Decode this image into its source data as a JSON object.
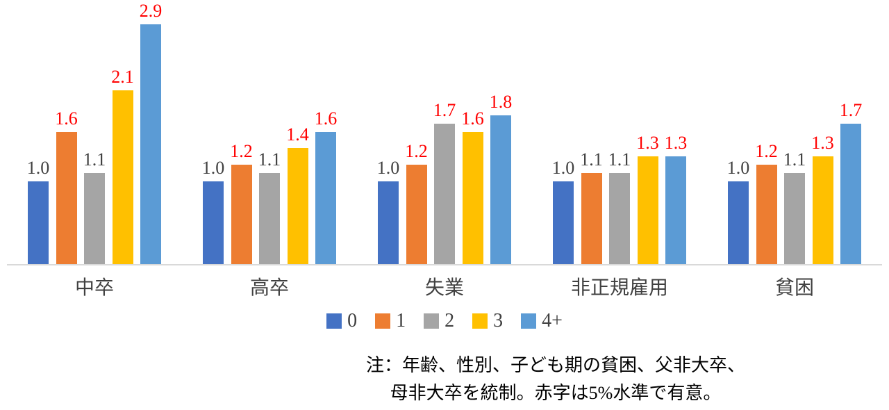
{
  "chart_data": {
    "type": "bar",
    "title": "",
    "xlabel": "",
    "ylabel": "",
    "ylim": [
      0,
      3.0
    ],
    "grid": false,
    "legend_position": "bottom-center",
    "categories": [
      "中卒",
      "高卒",
      "失業",
      "非正規雇用",
      "貧困"
    ],
    "series": [
      {
        "name": "0",
        "color": "#4472C4",
        "values": [
          1.0,
          1.0,
          1.0,
          1.0,
          1.0
        ],
        "significant": [
          false,
          false,
          false,
          false,
          false
        ]
      },
      {
        "name": "1",
        "color": "#ED7D31",
        "values": [
          1.6,
          1.2,
          1.2,
          1.1,
          1.2
        ],
        "significant": [
          true,
          true,
          true,
          false,
          true
        ]
      },
      {
        "name": "2",
        "color": "#A5A5A5",
        "values": [
          1.1,
          1.1,
          1.7,
          1.1,
          1.1
        ],
        "significant": [
          false,
          false,
          true,
          false,
          false
        ]
      },
      {
        "name": "3",
        "color": "#FFC000",
        "values": [
          2.1,
          1.4,
          1.6,
          1.3,
          1.3
        ],
        "significant": [
          true,
          true,
          true,
          true,
          true
        ]
      },
      {
        "name": "4+",
        "color": "#5B9BD5",
        "values": [
          2.9,
          1.6,
          1.8,
          1.3,
          1.7
        ],
        "significant": [
          true,
          true,
          true,
          true,
          true
        ]
      }
    ],
    "value_label_colors": {
      "default": "#404040",
      "significant": "#FF0000"
    },
    "value_label_format": "one_decimal",
    "notes": [
      "注：年齢、性別、子ども期の貧困、父非大卒、",
      "母非大卒を統制。赤字は5%水準で有意。"
    ]
  }
}
